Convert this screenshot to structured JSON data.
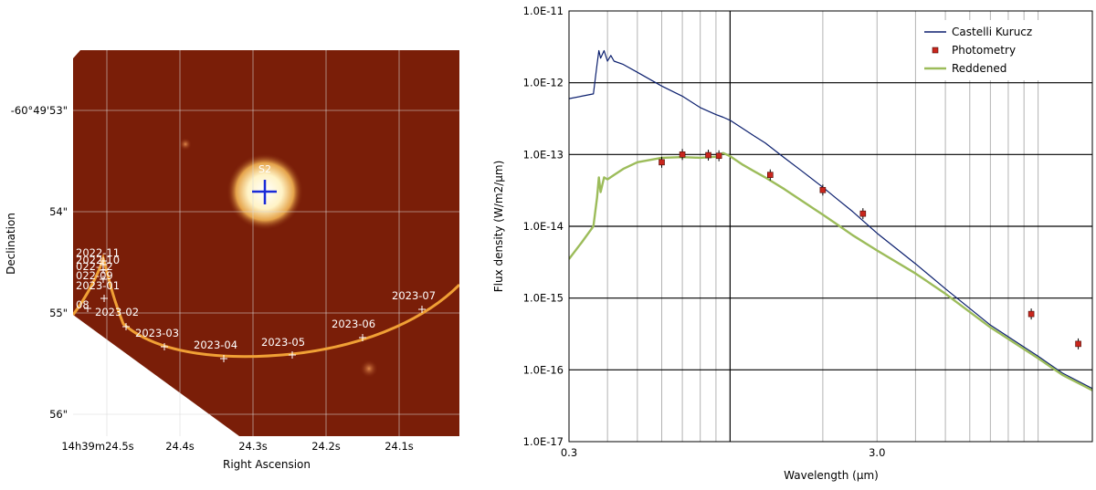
{
  "chart_data": [
    {
      "type": "image",
      "xlabel": "Right Ascension",
      "ylabel": "Declination",
      "x_ticks": [
        "14h39m24.5s",
        "24.4s",
        "24.3s",
        "24.2s",
        "24.1s"
      ],
      "y_ticks": [
        "-60°49'53\"",
        "54\"",
        "55\"",
        "56\""
      ],
      "grid": true,
      "source_label": "S2",
      "track_points": [
        {
          "label": "2022-11",
          "ra_s": 24.5,
          "dec_as": 54.75
        },
        {
          "label": "2022-10",
          "ra_s": 24.5,
          "dec_as": 54.85
        },
        {
          "label": "2022-12",
          "ra_s": 24.5,
          "dec_as": 54.95
        },
        {
          "label": "2022-09",
          "ra_s": 24.5,
          "dec_as": 55.05
        },
        {
          "label": "2023-01",
          "ra_s": 24.5,
          "dec_as": 55.15
        },
        {
          "label": "2022-08",
          "ra_s": 24.535,
          "dec_as": 55.46
        },
        {
          "label": "2023-02",
          "ra_s": 24.48,
          "dec_as": 55.63
        },
        {
          "label": "2023-03",
          "ra_s": 24.43,
          "dec_as": 55.83
        },
        {
          "label": "2023-04",
          "ra_s": 24.35,
          "dec_as": 55.93
        },
        {
          "label": "2023-05",
          "ra_s": 24.25,
          "dec_as": 55.9
        },
        {
          "label": "2023-06",
          "ra_s": 24.15,
          "dec_as": 55.75
        },
        {
          "label": "2023-07",
          "ra_s": 24.07,
          "dec_as": 55.48
        }
      ],
      "point_labels_shown": [
        "2022-11",
        "2022-10",
        "022-12",
        "022-09",
        "2023-01",
        "08",
        "2023-02",
        "2023-03",
        "2023-04",
        "2023-05",
        "2023-06",
        "2023-07"
      ],
      "colors": {
        "background": "#7a1e08",
        "track": "#f0a035",
        "marker": "#1a2bd8",
        "grid": "#d8d8d8"
      }
    },
    {
      "type": "line",
      "xlabel": "Wavelength (µm)",
      "ylabel": "Flux density (W/m2/µm)",
      "x_scale": "log",
      "y_scale": "log",
      "xlim": [
        0.3,
        15
      ],
      "ylim": [
        1e-17,
        1e-11
      ],
      "x_tick_labels": [
        "0.3",
        "3.0"
      ],
      "y_tick_labels": [
        "1.0E-11",
        "1.0E-12",
        "1.0E-13",
        "1.0E-14",
        "1.0E-15",
        "1.0E-16",
        "1.0E-17"
      ],
      "grid": true,
      "legend_position": "top-right",
      "series": [
        {
          "name": "Castelli Kurucz",
          "color": "#0b1f6e",
          "x": [
            0.3,
            0.33,
            0.36,
            0.37,
            0.375,
            0.38,
            0.39,
            0.4,
            0.41,
            0.42,
            0.45,
            0.5,
            0.6,
            0.7,
            0.8,
            0.9,
            0.95,
            1.0,
            1.1,
            1.2,
            1.3,
            1.5,
            1.7,
            2.0,
            2.2,
            2.5,
            3.0,
            4.0,
            5.0,
            7.0,
            10.0,
            12.0,
            15.0
          ],
          "y": [
            6e-13,
            6.5e-13,
            7e-13,
            1.8e-12,
            2.8e-12,
            2.2e-12,
            2.8e-12,
            2e-12,
            2.4e-12,
            2e-12,
            1.8e-12,
            1.4e-12,
            9e-13,
            6.5e-13,
            4.5e-13,
            3.6e-13,
            3.3e-13,
            3e-13,
            2.3e-13,
            1.8e-13,
            1.45e-13,
            9e-14,
            6e-14,
            3.5e-14,
            2.5e-14,
            1.6e-14,
            8e-15,
            3e-15,
            1.35e-15,
            4.2e-16,
            1.55e-16,
            9e-17,
            5.5e-17
          ]
        },
        {
          "name": "Reddened",
          "color": "#9cbc5a",
          "x": [
            0.3,
            0.33,
            0.36,
            0.37,
            0.375,
            0.38,
            0.39,
            0.4,
            0.42,
            0.45,
            0.5,
            0.6,
            0.7,
            0.8,
            0.9,
            0.95,
            1.0,
            1.1,
            1.2,
            1.3,
            1.5,
            1.7,
            2.0,
            2.2,
            2.5,
            3.0,
            4.0,
            5.0,
            7.0,
            10.0,
            12.0,
            15.0
          ],
          "y": [
            3.5e-15,
            6e-15,
            1e-14,
            2.5e-14,
            4.8e-14,
            3e-14,
            4.8e-14,
            4.5e-14,
            5.2e-14,
            6.3e-14,
            7.8e-14,
            9e-14,
            9.2e-14,
            9e-14,
            9.3e-14,
            1.05e-13,
            9.5e-14,
            7.2e-14,
            5.8e-14,
            4.8e-14,
            3.3e-14,
            2.3e-14,
            1.45e-14,
            1.1e-14,
            7.5e-15,
            4.6e-15,
            2.2e-15,
            1.15e-15,
            3.9e-16,
            1.45e-16,
            8.5e-17,
            5.2e-17
          ]
        },
        {
          "name": "Photometry",
          "color": "#c9261d",
          "marker": "square",
          "x": [
            0.6,
            0.7,
            0.85,
            0.92,
            1.35,
            2.0,
            2.7,
            9.5,
            13.5
          ],
          "y": [
            7.8e-14,
            1e-13,
            9.8e-14,
            9.6e-14,
            5.2e-14,
            3.2e-14,
            1.5e-14,
            6e-16,
            2.3e-16
          ]
        }
      ]
    }
  ]
}
